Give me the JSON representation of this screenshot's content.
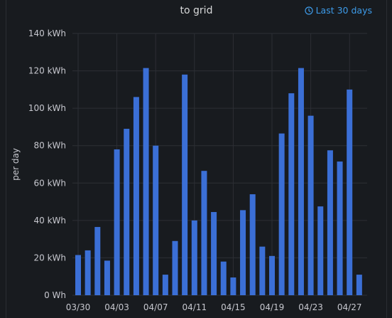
{
  "panel": {
    "title": "to grid",
    "time_range_label": "Last 30 days"
  },
  "colors": {
    "bar": "#3b6fd6",
    "grid": "#2c2f35",
    "background": "#181b1f",
    "link": "#3d9be9"
  },
  "icons": {
    "time_range": "clock-icon"
  },
  "chart_data": {
    "type": "bar",
    "title": "to grid",
    "ylabel": "per day",
    "xlabel": "",
    "unit": "kWh",
    "ylim": [
      0,
      140
    ],
    "grid": true,
    "y_ticks": [
      {
        "value": 0,
        "label": "0 Wh"
      },
      {
        "value": 20,
        "label": "20 kWh"
      },
      {
        "value": 40,
        "label": "40 kWh"
      },
      {
        "value": 60,
        "label": "60 kWh"
      },
      {
        "value": 80,
        "label": "80 kWh"
      },
      {
        "value": 100,
        "label": "100 kWh"
      },
      {
        "value": 120,
        "label": "120 kWh"
      },
      {
        "value": 140,
        "label": "140 kWh"
      }
    ],
    "x_tick_labels": [
      {
        "category": "03/30",
        "label": "03/30"
      },
      {
        "category": "04/03",
        "label": "04/03"
      },
      {
        "category": "04/07",
        "label": "04/07"
      },
      {
        "category": "04/11",
        "label": "04/11"
      },
      {
        "category": "04/15",
        "label": "04/15"
      },
      {
        "category": "04/19",
        "label": "04/19"
      },
      {
        "category": "04/23",
        "label": "04/23"
      },
      {
        "category": "04/27",
        "label": "04/27"
      }
    ],
    "categories": [
      "03/30",
      "03/31",
      "04/01",
      "04/02",
      "04/03",
      "04/04",
      "04/05",
      "04/06",
      "04/07",
      "04/08",
      "04/09",
      "04/10",
      "04/11",
      "04/12",
      "04/13",
      "04/14",
      "04/15",
      "04/16",
      "04/17",
      "04/18",
      "04/19",
      "04/20",
      "04/21",
      "04/22",
      "04/23",
      "04/24",
      "04/25",
      "04/26",
      "04/27",
      "04/28"
    ],
    "values": [
      21.5,
      24,
      36.5,
      18.5,
      78,
      89,
      106,
      121.5,
      80,
      11,
      29,
      118,
      40,
      66.5,
      44.5,
      18,
      9.5,
      45.5,
      54,
      26,
      21,
      86.5,
      108,
      121.5,
      96,
      47.5,
      77.5,
      71.5,
      110,
      11
    ]
  }
}
